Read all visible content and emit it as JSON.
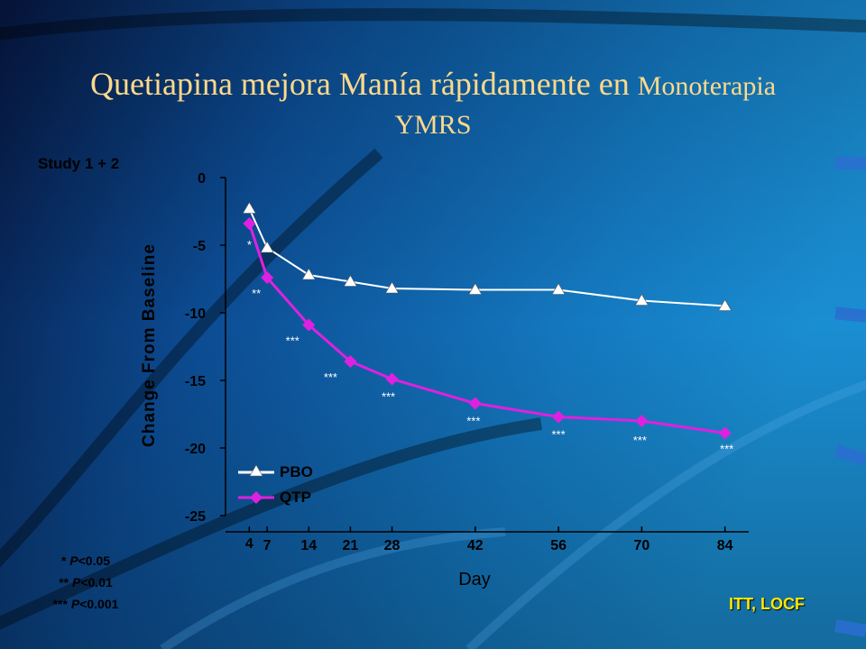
{
  "slide": {
    "title_main": "Quetiapina mejora Manía rápidamente en",
    "title_small": "Monoterapia",
    "title_line2": "YMRS",
    "study_label": "Study 1 + 2",
    "significance_notes": [
      {
        "stars": "*",
        "p_label": "P",
        "threshold": "<0.05"
      },
      {
        "stars": "**",
        "p_label": "P",
        "threshold": "<0.01"
      },
      {
        "stars": "***",
        "p_label": "P",
        "threshold": "<0.001"
      }
    ],
    "footer_label": "ITT, LOCF"
  },
  "colors": {
    "background_dark": "#071a4e",
    "background_mid": "#0f5fa8",
    "background_light": "#1a8cd0",
    "title": "#ffd98a",
    "pbo": "#ffffff",
    "qtp": "#e020e0",
    "footer": "#ffe600"
  },
  "chart_data": {
    "type": "line",
    "xlabel": "Day",
    "ylabel": "Change From Baseline",
    "ylim": [
      -25,
      0
    ],
    "yticks": [
      0,
      -5,
      -10,
      -15,
      -20,
      -25
    ],
    "xticks": [
      4,
      7,
      14,
      21,
      28,
      42,
      56,
      70,
      84
    ],
    "grid": false,
    "legend_position": "bottom-left",
    "series": [
      {
        "name": "PBO",
        "marker": "triangle",
        "color": "#ffffff",
        "x": [
          4,
          7,
          14,
          21,
          28,
          42,
          56,
          70,
          84
        ],
        "y": [
          -2.3,
          -5.2,
          -7.2,
          -7.7,
          -8.2,
          -8.3,
          -8.3,
          -9.1,
          -9.5
        ]
      },
      {
        "name": "QTP",
        "marker": "diamond",
        "color": "#e020e0",
        "x": [
          4,
          7,
          14,
          21,
          28,
          42,
          56,
          70,
          84
        ],
        "y": [
          -3.4,
          -7.4,
          -10.9,
          -13.6,
          -14.9,
          -16.7,
          -17.7,
          -18.0,
          -18.9
        ]
      }
    ],
    "annotations": [
      {
        "x": 4,
        "text": "*"
      },
      {
        "x": 7,
        "text": "**"
      },
      {
        "x": 14,
        "text": "***"
      },
      {
        "x": 21,
        "text": "***"
      },
      {
        "x": 28,
        "text": "***"
      },
      {
        "x": 42,
        "text": "***"
      },
      {
        "x": 56,
        "text": "***"
      },
      {
        "x": 70,
        "text": "***"
      },
      {
        "x": 84,
        "text": "***"
      }
    ]
  }
}
